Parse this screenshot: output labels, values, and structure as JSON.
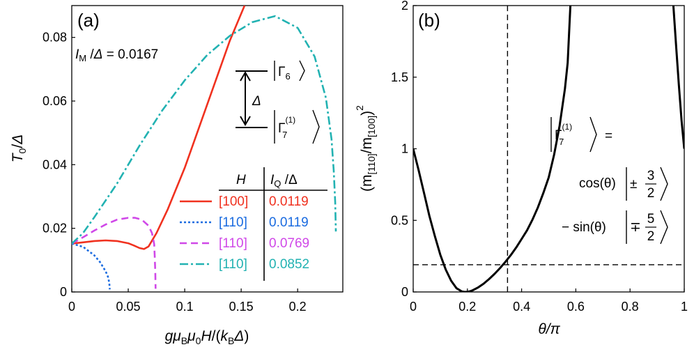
{
  "chart_data": [
    {
      "type": "line",
      "panel_label": "(a)",
      "xlabel": "gμBμ0H/(kBΔ)",
      "ylabel": "T0/Δ",
      "xlim": [
        0,
        0.24
      ],
      "ylim": [
        0,
        0.09
      ],
      "x_ticks": [
        0,
        0.05,
        0.1,
        0.15,
        0.2
      ],
      "x_tick_labels": [
        "0",
        "0.05",
        "0.1",
        "0.15",
        "0.2"
      ],
      "y_ticks": [
        0,
        0.02,
        0.04,
        0.06,
        0.08
      ],
      "y_tick_labels": [
        "0",
        "0.02",
        "0.04",
        "0.06",
        "0.08"
      ],
      "annotation_IM": "= 0.0167",
      "level_labels": {
        "upper": "Γ6",
        "lower": "Γ7(1)",
        "gap": "Δ"
      },
      "legend_table": {
        "col_h": "H",
        "col_iq": "/Δ"
      },
      "series": [
        {
          "name": "[100]",
          "iq": "0.0119",
          "color": "#f0311f",
          "dash": "",
          "x": [
            0,
            0.01,
            0.02,
            0.03,
            0.04,
            0.05,
            0.055,
            0.06,
            0.064,
            0.068,
            0.075,
            0.085,
            0.1,
            0.115,
            0.13,
            0.14,
            0.153
          ],
          "y": [
            0.0152,
            0.0156,
            0.016,
            0.0162,
            0.016,
            0.0153,
            0.0146,
            0.0138,
            0.0135,
            0.0143,
            0.0185,
            0.026,
            0.039,
            0.054,
            0.069,
            0.079,
            0.09
          ]
        },
        {
          "name": "[110]",
          "iq": "0.0119",
          "color": "#1a6be0",
          "dash": "3,3",
          "x": [
            0,
            0.01,
            0.02,
            0.025,
            0.03,
            0.032,
            0.033,
            0.0335,
            0.0336
          ],
          "y": [
            0.0152,
            0.0142,
            0.0115,
            0.0094,
            0.0065,
            0.0048,
            0.0032,
            0.0018,
            0.0008
          ]
        },
        {
          "name": "[110]",
          "iq": "0.0769",
          "color": "#d048e8",
          "dash": "10,6",
          "x": [
            0,
            0.01,
            0.02,
            0.03,
            0.04,
            0.05,
            0.056,
            0.062,
            0.068,
            0.071,
            0.073,
            0.0735,
            0.074,
            0.0742
          ],
          "y": [
            0.0152,
            0.0172,
            0.0193,
            0.0212,
            0.0227,
            0.0233,
            0.0233,
            0.0227,
            0.0208,
            0.0185,
            0.015,
            0.011,
            0.006,
            0.001
          ]
        },
        {
          "name": "[110]",
          "iq": "0.0852",
          "color": "#22b2b2",
          "dash": "12,4,3,4",
          "x": [
            0,
            0.01,
            0.02,
            0.04,
            0.06,
            0.08,
            0.1,
            0.12,
            0.14,
            0.16,
            0.18,
            0.2,
            0.215,
            0.225,
            0.23,
            0.232,
            0.2333,
            0.2338
          ],
          "y": [
            0.0152,
            0.0185,
            0.0235,
            0.034,
            0.046,
            0.057,
            0.0665,
            0.0745,
            0.0805,
            0.0848,
            0.0867,
            0.083,
            0.074,
            0.061,
            0.048,
            0.038,
            0.028,
            0.019
          ]
        }
      ]
    },
    {
      "type": "line",
      "panel_label": "(b)",
      "xlabel": "θ/π",
      "ylabel_parts": [
        "(m",
        "[110]",
        "/m",
        "[100]",
        ")",
        "2"
      ],
      "xlim": [
        0,
        1
      ],
      "ylim": [
        0,
        2
      ],
      "x_ticks": [
        0,
        0.2,
        0.4,
        0.6,
        0.8,
        1
      ],
      "x_tick_labels": [
        "0",
        "0.2",
        "0.4",
        "0.6",
        "0.8",
        "1"
      ],
      "y_ticks": [
        0,
        0.5,
        1,
        1.5,
        2
      ],
      "y_tick_labels": [
        "0",
        "0.5",
        "1",
        "1.5",
        "2"
      ],
      "vline_x": 0.348,
      "hline_y": 0.19,
      "state_text": {
        "eq": "=",
        "cos": "cos(θ)",
        "cos_ket": "±",
        "frac_num_1": "3",
        "frac_den_1": "2",
        "sin": "− sin(θ)",
        "sin_ket": "∓",
        "frac_num_2": "5",
        "frac_den_2": "2"
      },
      "curve": {
        "name": "(m[110]/m[100])^2",
        "color": "#000000",
        "theta_over_pi": [
          0,
          0.02,
          0.04,
          0.06,
          0.08,
          0.1,
          0.12,
          0.14,
          0.16,
          0.18,
          0.19,
          0.2,
          0.21,
          0.22,
          0.24,
          0.26,
          0.28,
          0.3,
          0.32,
          0.34,
          0.36,
          0.38,
          0.4,
          0.42,
          0.44,
          0.46,
          0.48,
          0.5,
          0.52,
          0.54,
          0.56,
          0.57,
          0.58,
          0.96,
          0.97,
          0.98,
          0.99,
          1.0
        ],
        "values": [
          1.0,
          0.85,
          0.69,
          0.53,
          0.39,
          0.26,
          0.156,
          0.078,
          0.026,
          0.003,
          0.0,
          0.001,
          0.005,
          0.012,
          0.032,
          0.058,
          0.09,
          0.126,
          0.166,
          0.21,
          0.257,
          0.31,
          0.37,
          0.43,
          0.505,
          0.59,
          0.69,
          0.8,
          0.96,
          1.16,
          1.42,
          1.6,
          2.0,
          2.0,
          1.72,
          1.45,
          1.2,
          1.0
        ]
      }
    }
  ]
}
